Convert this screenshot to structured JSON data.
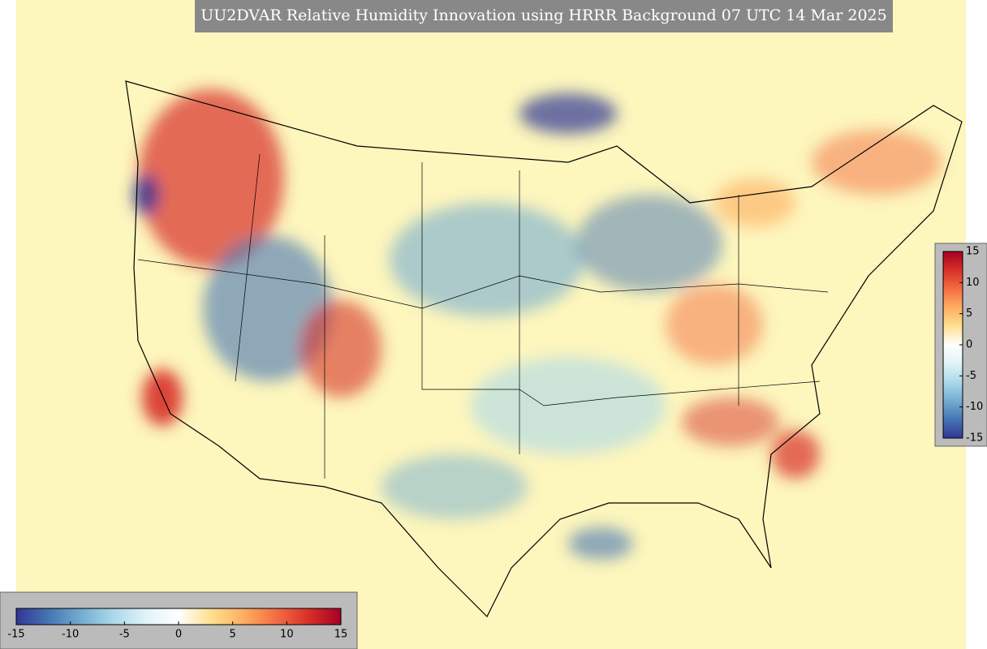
{
  "title": "UU2DVAR Relative Humidity Innovation using HRRR Background 07 UTC 14 Mar 2025",
  "colormap": [
    "#313695",
    "#4575b4",
    "#74add1",
    "#abd9e9",
    "#e0f3f8",
    "#ffffff",
    "#fee090",
    "#fdae61",
    "#f46d43",
    "#d73027",
    "#a50026"
  ],
  "colorbars": [
    {
      "orientation": "vertical",
      "lim": [
        -15,
        15
      ],
      "ticks": [
        15,
        10,
        5,
        0,
        -5,
        -10,
        -15
      ]
    },
    {
      "orientation": "horizontal",
      "lim": [
        -15,
        15
      ],
      "ticks": [
        -15,
        -10,
        -5,
        0,
        5,
        10,
        15
      ]
    }
  ]
}
